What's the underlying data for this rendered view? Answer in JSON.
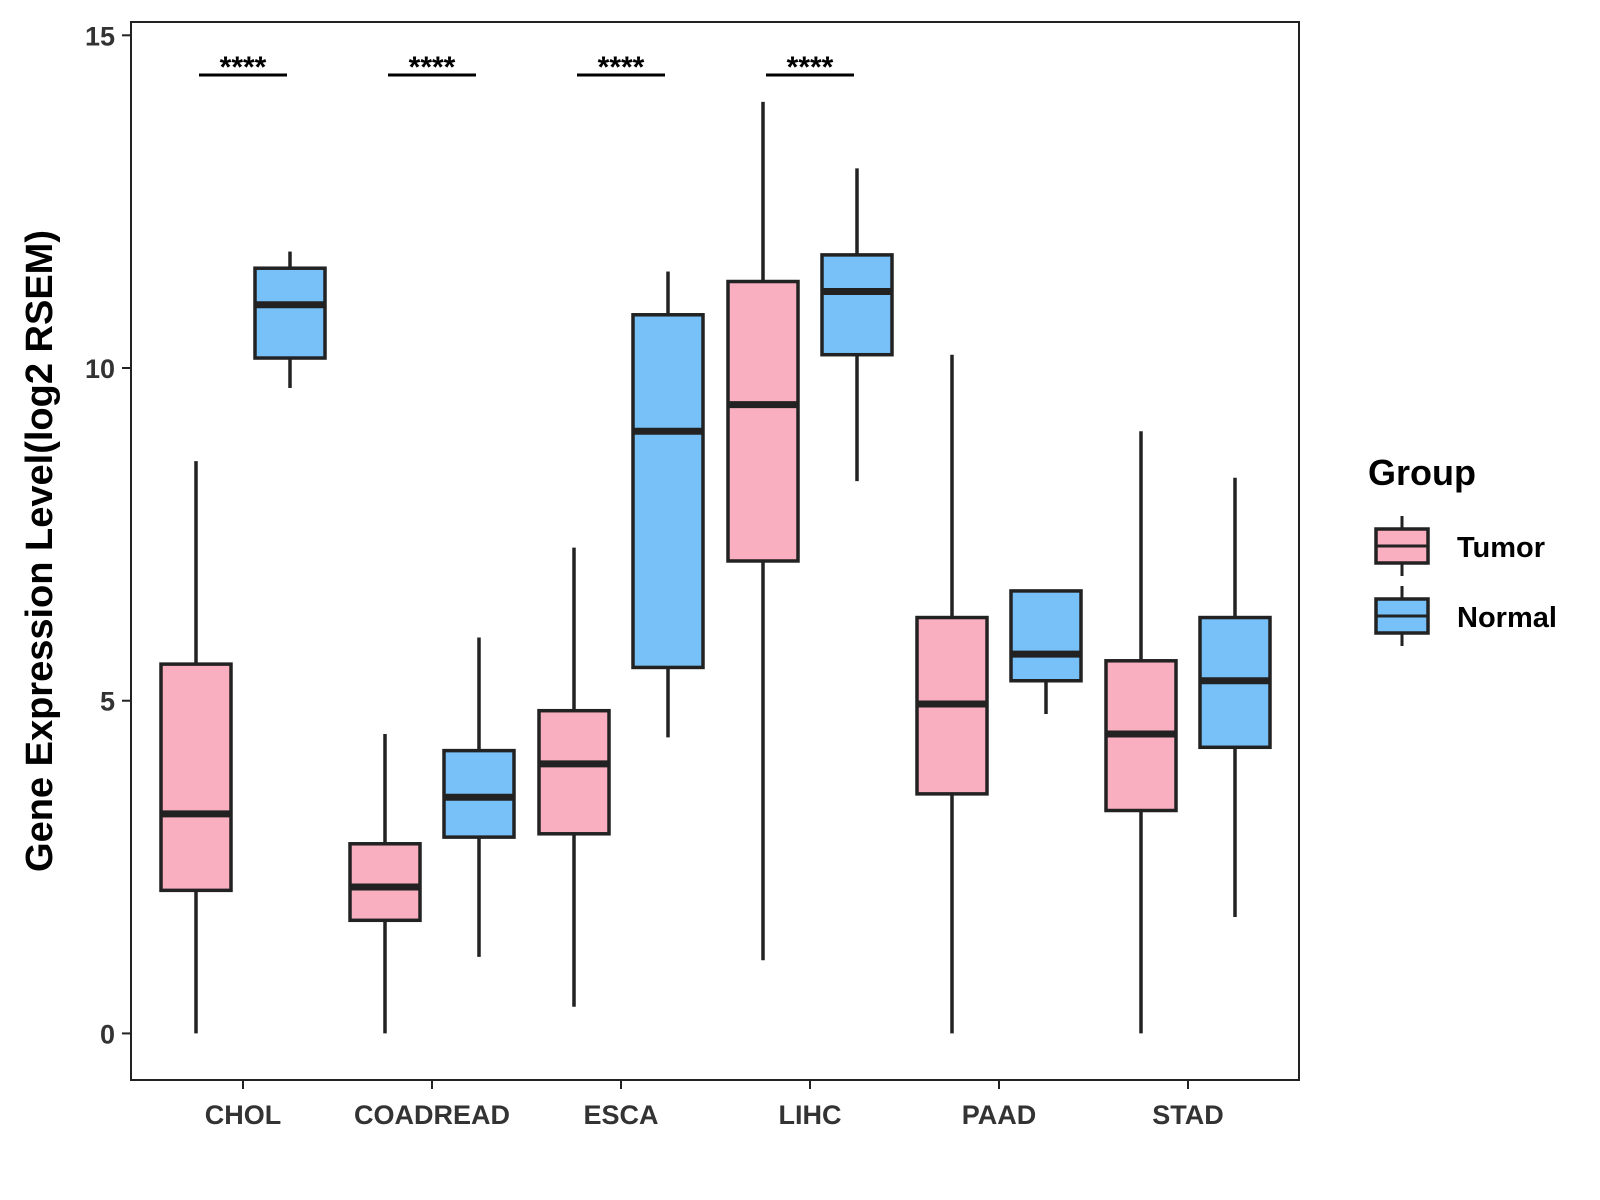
{
  "chart_data": {
    "type": "boxplot",
    "title": "",
    "xlabel": "",
    "ylabel": "Gene Expression Level(log2 RSEM)",
    "ylim": [
      -0.7,
      15.2
    ],
    "yticks": [
      0,
      5,
      10,
      15
    ],
    "ytick_labels": [
      "0",
      "5",
      "10",
      "15"
    ],
    "grid": false,
    "categories": [
      "CHOL",
      "COADREAD",
      "ESCA",
      "LIHC",
      "PAAD",
      "STAD"
    ],
    "legend": {
      "title": "Group",
      "position": "right",
      "items": [
        {
          "label": "Tumor",
          "color": "#F9AFC0"
        },
        {
          "label": "Normal",
          "color": "#78C1F8"
        }
      ]
    },
    "series": [
      {
        "name": "Tumor",
        "color": "#F9AFC0",
        "boxes": [
          {
            "category": "CHOL",
            "whisker_low": 0.0,
            "q1": 2.15,
            "median": 3.3,
            "q3": 5.55,
            "whisker_high": 8.6
          },
          {
            "category": "COADREAD",
            "whisker_low": 0.0,
            "q1": 1.7,
            "median": 2.2,
            "q3": 2.85,
            "whisker_high": 4.5
          },
          {
            "category": "ESCA",
            "whisker_low": 0.4,
            "q1": 3.0,
            "median": 4.05,
            "q3": 4.85,
            "whisker_high": 7.3
          },
          {
            "category": "LIHC",
            "whisker_low": 1.1,
            "q1": 7.1,
            "median": 9.45,
            "q3": 11.3,
            "whisker_high": 14.0
          },
          {
            "category": "PAAD",
            "whisker_low": 0.0,
            "q1": 3.6,
            "median": 4.95,
            "q3": 6.25,
            "whisker_high": 10.2
          },
          {
            "category": "STAD",
            "whisker_low": 0.0,
            "q1": 3.35,
            "median": 4.5,
            "q3": 5.6,
            "whisker_high": 9.05
          }
        ]
      },
      {
        "name": "Normal",
        "color": "#78C1F8",
        "boxes": [
          {
            "category": "CHOL",
            "whisker_low": 9.7,
            "q1": 10.15,
            "median": 10.95,
            "q3": 11.5,
            "whisker_high": 11.75
          },
          {
            "category": "COADREAD",
            "whisker_low": 1.15,
            "q1": 2.95,
            "median": 3.55,
            "q3": 4.25,
            "whisker_high": 5.95
          },
          {
            "category": "ESCA",
            "whisker_low": 4.45,
            "q1": 5.5,
            "median": 9.05,
            "q3": 10.8,
            "whisker_high": 11.45
          },
          {
            "category": "LIHC",
            "whisker_low": 8.3,
            "q1": 10.2,
            "median": 11.15,
            "q3": 11.7,
            "whisker_high": 13.0
          },
          {
            "category": "PAAD",
            "whisker_low": 4.8,
            "q1": 5.3,
            "median": 5.7,
            "q3": 6.65,
            "whisker_high": 6.65
          },
          {
            "category": "STAD",
            "whisker_low": 1.75,
            "q1": 4.3,
            "median": 5.3,
            "q3": 6.25,
            "whisker_high": 8.35
          }
        ]
      }
    ],
    "annotations": [
      {
        "category": "CHOL",
        "text": "****"
      },
      {
        "category": "COADREAD",
        "text": "****"
      },
      {
        "category": "ESCA",
        "text": "****"
      },
      {
        "category": "LIHC",
        "text": "****"
      }
    ]
  }
}
